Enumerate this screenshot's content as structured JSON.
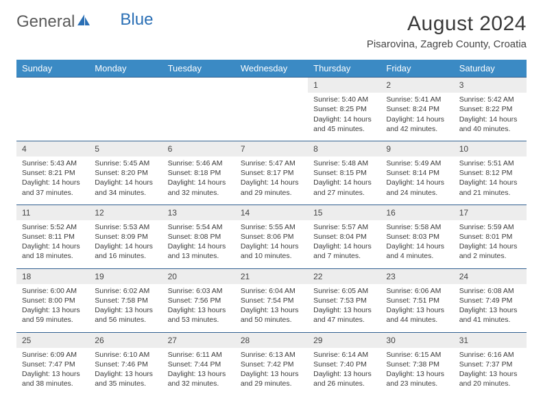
{
  "logo": {
    "text_gray": "General",
    "text_blue": "Blue"
  },
  "header": {
    "title": "August 2024",
    "location": "Pisarovina, Zagreb County, Croatia"
  },
  "colors": {
    "header_bar": "#3b8ac4",
    "header_text": "#ffffff",
    "daynum_bg": "#ededed",
    "row_divider": "#2f5f8f",
    "body_text": "#3a3a3a",
    "logo_gray": "#5a5a5a",
    "logo_blue": "#2a6fb5"
  },
  "weekdays": [
    "Sunday",
    "Monday",
    "Tuesday",
    "Wednesday",
    "Thursday",
    "Friday",
    "Saturday"
  ],
  "weeks": [
    [
      null,
      null,
      null,
      null,
      {
        "n": "1",
        "sr": "5:40 AM",
        "ss": "8:25 PM",
        "dl": "14 hours and 45 minutes."
      },
      {
        "n": "2",
        "sr": "5:41 AM",
        "ss": "8:24 PM",
        "dl": "14 hours and 42 minutes."
      },
      {
        "n": "3",
        "sr": "5:42 AM",
        "ss": "8:22 PM",
        "dl": "14 hours and 40 minutes."
      }
    ],
    [
      {
        "n": "4",
        "sr": "5:43 AM",
        "ss": "8:21 PM",
        "dl": "14 hours and 37 minutes."
      },
      {
        "n": "5",
        "sr": "5:45 AM",
        "ss": "8:20 PM",
        "dl": "14 hours and 34 minutes."
      },
      {
        "n": "6",
        "sr": "5:46 AM",
        "ss": "8:18 PM",
        "dl": "14 hours and 32 minutes."
      },
      {
        "n": "7",
        "sr": "5:47 AM",
        "ss": "8:17 PM",
        "dl": "14 hours and 29 minutes."
      },
      {
        "n": "8",
        "sr": "5:48 AM",
        "ss": "8:15 PM",
        "dl": "14 hours and 27 minutes."
      },
      {
        "n": "9",
        "sr": "5:49 AM",
        "ss": "8:14 PM",
        "dl": "14 hours and 24 minutes."
      },
      {
        "n": "10",
        "sr": "5:51 AM",
        "ss": "8:12 PM",
        "dl": "14 hours and 21 minutes."
      }
    ],
    [
      {
        "n": "11",
        "sr": "5:52 AM",
        "ss": "8:11 PM",
        "dl": "14 hours and 18 minutes."
      },
      {
        "n": "12",
        "sr": "5:53 AM",
        "ss": "8:09 PM",
        "dl": "14 hours and 16 minutes."
      },
      {
        "n": "13",
        "sr": "5:54 AM",
        "ss": "8:08 PM",
        "dl": "14 hours and 13 minutes."
      },
      {
        "n": "14",
        "sr": "5:55 AM",
        "ss": "8:06 PM",
        "dl": "14 hours and 10 minutes."
      },
      {
        "n": "15",
        "sr": "5:57 AM",
        "ss": "8:04 PM",
        "dl": "14 hours and 7 minutes."
      },
      {
        "n": "16",
        "sr": "5:58 AM",
        "ss": "8:03 PM",
        "dl": "14 hours and 4 minutes."
      },
      {
        "n": "17",
        "sr": "5:59 AM",
        "ss": "8:01 PM",
        "dl": "14 hours and 2 minutes."
      }
    ],
    [
      {
        "n": "18",
        "sr": "6:00 AM",
        "ss": "8:00 PM",
        "dl": "13 hours and 59 minutes."
      },
      {
        "n": "19",
        "sr": "6:02 AM",
        "ss": "7:58 PM",
        "dl": "13 hours and 56 minutes."
      },
      {
        "n": "20",
        "sr": "6:03 AM",
        "ss": "7:56 PM",
        "dl": "13 hours and 53 minutes."
      },
      {
        "n": "21",
        "sr": "6:04 AM",
        "ss": "7:54 PM",
        "dl": "13 hours and 50 minutes."
      },
      {
        "n": "22",
        "sr": "6:05 AM",
        "ss": "7:53 PM",
        "dl": "13 hours and 47 minutes."
      },
      {
        "n": "23",
        "sr": "6:06 AM",
        "ss": "7:51 PM",
        "dl": "13 hours and 44 minutes."
      },
      {
        "n": "24",
        "sr": "6:08 AM",
        "ss": "7:49 PM",
        "dl": "13 hours and 41 minutes."
      }
    ],
    [
      {
        "n": "25",
        "sr": "6:09 AM",
        "ss": "7:47 PM",
        "dl": "13 hours and 38 minutes."
      },
      {
        "n": "26",
        "sr": "6:10 AM",
        "ss": "7:46 PM",
        "dl": "13 hours and 35 minutes."
      },
      {
        "n": "27",
        "sr": "6:11 AM",
        "ss": "7:44 PM",
        "dl": "13 hours and 32 minutes."
      },
      {
        "n": "28",
        "sr": "6:13 AM",
        "ss": "7:42 PM",
        "dl": "13 hours and 29 minutes."
      },
      {
        "n": "29",
        "sr": "6:14 AM",
        "ss": "7:40 PM",
        "dl": "13 hours and 26 minutes."
      },
      {
        "n": "30",
        "sr": "6:15 AM",
        "ss": "7:38 PM",
        "dl": "13 hours and 23 minutes."
      },
      {
        "n": "31",
        "sr": "6:16 AM",
        "ss": "7:37 PM",
        "dl": "13 hours and 20 minutes."
      }
    ]
  ],
  "labels": {
    "sunrise": "Sunrise: ",
    "sunset": "Sunset: ",
    "daylight": "Daylight: "
  }
}
